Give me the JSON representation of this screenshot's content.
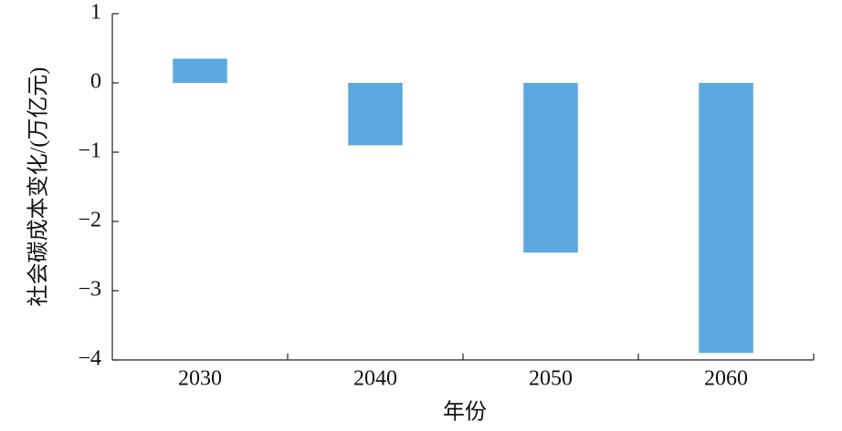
{
  "chart_data": {
    "type": "bar",
    "xlabel": "年份",
    "ylabel": "社会碳成本变化/(万亿元)",
    "categories": [
      "2030",
      "2040",
      "2050",
      "2060"
    ],
    "values": [
      0.35,
      -0.9,
      -2.45,
      -3.9
    ],
    "color": "#5ba8e0",
    "ylim": [
      -4,
      1
    ],
    "yticks": [
      {
        "value": -4,
        "label": "−4"
      },
      {
        "value": -3,
        "label": "−3"
      },
      {
        "value": -2,
        "label": "−2"
      },
      {
        "value": -1,
        "label": "−1"
      },
      0,
      1
    ],
    "grid": false
  }
}
